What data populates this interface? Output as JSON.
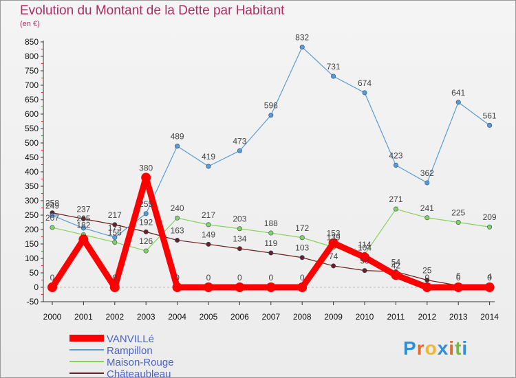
{
  "title": "Evolution du Montant de la Dette par Habitant",
  "unit_label": "(en €)",
  "logo": {
    "text": "Proxiti",
    "letters": [
      "P",
      "r",
      "o",
      "x",
      "i",
      "t",
      "i"
    ],
    "colors": [
      "#2f8fd8",
      "#e36b2a",
      "#f2b52c",
      "#2f8fd8",
      "#e36b2a",
      "#77b83e",
      "#2f8fd8"
    ]
  },
  "chart_data": {
    "type": "line",
    "x": [
      "2000",
      "2001",
      "2002",
      "2003",
      "2004",
      "2005",
      "2006",
      "2007",
      "2008",
      "2009",
      "2010",
      "2011",
      "2012",
      "2013",
      "2014"
    ],
    "ylim": [
      -50,
      850
    ],
    "yticks": [
      -50,
      0,
      50,
      100,
      150,
      200,
      250,
      300,
      350,
      400,
      450,
      500,
      550,
      600,
      650,
      700,
      750,
      800,
      850
    ],
    "grid": false,
    "legend_position": "bottom-left",
    "series": [
      {
        "name": "VANVILLé",
        "color": "#ff0000",
        "values": [
          0,
          166,
          0,
          380,
          0,
          0,
          0,
          0,
          0,
          153,
          104,
          42,
          0,
          0,
          0
        ],
        "labels": [
          "0",
          "",
          "0",
          "380",
          "0",
          "0",
          "0",
          "0",
          "0",
          "153",
          "104",
          "42",
          "0",
          "0",
          "0"
        ]
      },
      {
        "name": "Rampillon",
        "color": "#5b9bd5",
        "values": [
          249,
          205,
          173,
          255,
          489,
          419,
          473,
          596,
          832,
          731,
          674,
          423,
          362,
          641,
          561
        ],
        "labels": [
          "249",
          "205",
          "173",
          "255",
          "489",
          "419",
          "473",
          "596",
          "832",
          "731",
          "674",
          "423",
          "362",
          "641",
          "561"
        ]
      },
      {
        "name": "Maison-Rouge",
        "color": "#86d25a",
        "values": [
          207,
          182,
          156,
          126,
          240,
          217,
          203,
          188,
          172,
          139,
          114,
          271,
          241,
          225,
          209
        ],
        "labels": [
          "207",
          "182",
          "156",
          "126",
          "240",
          "217",
          "203",
          "188",
          "172",
          "139",
          "114",
          "271",
          "241",
          "225",
          "209"
        ]
      },
      {
        "name": "Châteaubleau",
        "color": "#6b1f1f",
        "values": [
          258,
          237,
          217,
          192,
          163,
          149,
          134,
          119,
          103,
          74,
          58,
          54,
          25,
          6,
          4
        ],
        "labels": [
          "258",
          "237",
          "217",
          "192",
          "163",
          "149",
          "134",
          "119",
          "103",
          "74",
          "58",
          "54",
          "25",
          "6",
          "4"
        ]
      }
    ]
  }
}
